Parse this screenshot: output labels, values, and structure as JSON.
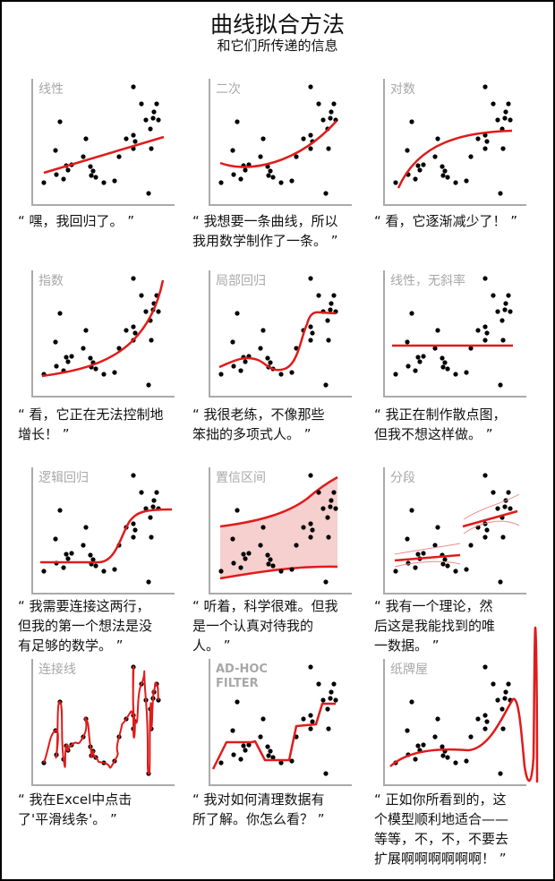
{
  "title": "曲线拟合方法",
  "subtitle": "和它们所传递的信息",
  "colors": {
    "fit": "#e01b1b",
    "band": "#f6cfcf",
    "axis": "#aaaaaa",
    "point": "#000000"
  },
  "panels": [
    {
      "label": "线性",
      "caption": "“ 嘿，我回归了。 ”"
    },
    {
      "label": "二次",
      "caption": "“ 我想要一条曲线，所以\n我用数学制作了一条。 ”"
    },
    {
      "label": "对数",
      "caption": "“ 看，它逐渐减少了！ ”"
    },
    {
      "label": "指数",
      "caption": "“ 看，它正在无法控制地\n增长！ ”"
    },
    {
      "label": "局部回归",
      "caption": "“ 我很老练，不像那些\n笨拙的多项式人。 ”"
    },
    {
      "label": "线性，无斜率",
      "caption": "“ 我正在制作散点图，\n但我不想这样做。 ”"
    },
    {
      "label": "逻辑回归",
      "caption": "“ 我需要连接这两行，\n但我的第一个想法是没\n有足够的数学。 ”"
    },
    {
      "label": "置信区间",
      "caption": "“ 听着，科学很难。但我\n是一个认真对待我的\n人。 ”"
    },
    {
      "label": "分段",
      "caption": "“ 我有一个理论，然\n后这是我能找到的唯\n一数据。 ”"
    },
    {
      "label": "连接线",
      "caption": "“ 我在Excel中点击\n了'平滑线条'。 ”"
    },
    {
      "label": "AD-HOC\nFILTER",
      "caption": "“ 我对如何清理数据有\n所了解。你怎么看？ ”"
    },
    {
      "label": "纸牌屋",
      "caption": "“ 正如你所看到的，这\n个模型顺利地适合——\n等等，不，不，不要去\n扩展啊啊啊啊啊啊！ ”"
    }
  ]
}
